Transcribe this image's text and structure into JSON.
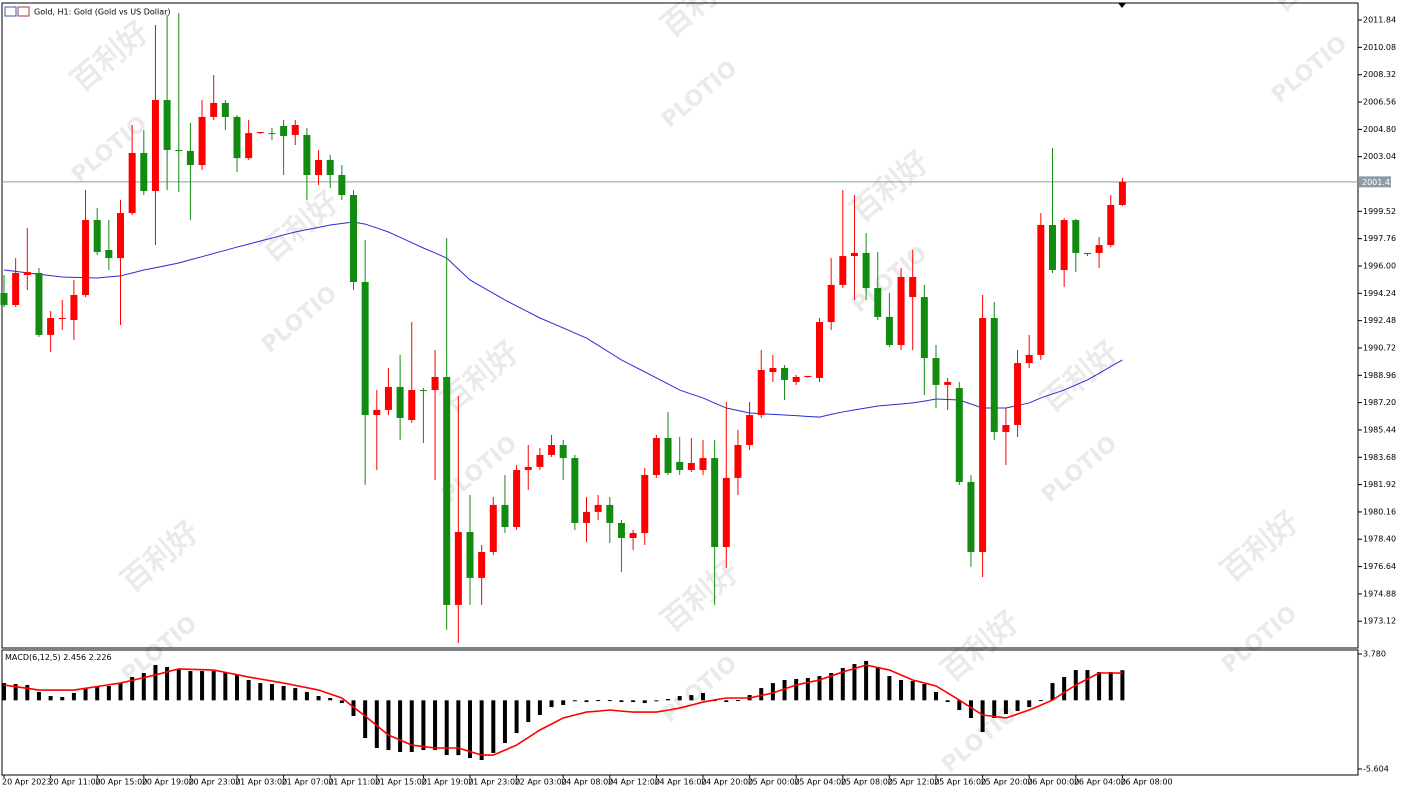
{
  "watermark": {
    "logo": "PLOTIO",
    "brand": "百利好"
  },
  "chart_data": [
    {
      "type": "candlestick",
      "title": "Gold, H1:  Gold (Gold vs US Dollar)",
      "categories": [
        "20 Apr 2023",
        null,
        null,
        null,
        "20 Apr 11:00",
        null,
        null,
        null,
        "20 Apr 15:00",
        null,
        null,
        null,
        "20 Apr 19:00",
        null,
        null,
        null,
        "20 Apr 23:00",
        null,
        null,
        null,
        "21 Apr 03:00",
        null,
        null,
        null,
        "21 Apr 07:00",
        null,
        null,
        null,
        "21 Apr 11:00",
        null,
        null,
        null,
        "21 Apr 15:00",
        null,
        null,
        null,
        "21 Apr 19:00",
        null,
        null,
        null,
        "21 Apr 23:00",
        null,
        null,
        null,
        "22 Apr 03:00",
        null,
        null,
        null,
        "24 Apr 08:00",
        null,
        null,
        null,
        "24 Apr 12:00",
        null,
        null,
        null,
        "24 Apr 16:00",
        null,
        null,
        null,
        "24 Apr 20:00",
        null,
        null,
        null,
        "25 Apr 00:00",
        null,
        null,
        null,
        "25 Apr 04:00",
        null,
        null,
        null,
        "25 Apr 08:00",
        null,
        null,
        null,
        "25 Apr 12:00",
        null,
        null,
        null,
        "25 Apr 16:00",
        null,
        null,
        null,
        "25 Apr 20:00",
        null,
        null,
        null,
        "26 Apr 00:00",
        null,
        null,
        null,
        "26 Apr 04:00",
        null,
        null,
        null,
        "26 Apr 08:00"
      ],
      "open": [
        1994.26,
        1993.49,
        1995.42,
        1995.55,
        1991.56,
        1992.59,
        1992.52,
        1994.13,
        1998.96,
        1997.03,
        1996.51,
        1999.41,
        2003.28,
        2000.83,
        2006.69,
        2003.47,
        2003.41,
        2002.5,
        2005.6,
        2006.5,
        2005.6,
        2002.95,
        2004.56,
        2004.56,
        2005.02,
        2004.44,
        2004.44,
        2001.86,
        2002.83,
        2001.86,
        2000.57,
        1994.97,
        1986.4,
        1986.73,
        1988.21,
        1986.08,
        1988.01,
        1988.01,
        1988.85,
        1974.17,
        1978.87,
        1975.91,
        1977.58,
        1980.61,
        1979.19,
        1982.86,
        1983.06,
        1983.83,
        1984.47,
        1983.63,
        1979.45,
        1980.16,
        1980.61,
        1979.45,
        1978.48,
        1978.8,
        1982.54,
        1984.92,
        1983.38,
        1982.86,
        1982.86,
        1983.63,
        1977.9,
        1982.35,
        1984.47,
        1986.4,
        1989.17,
        1989.43,
        1988.53,
        1988.85,
        1988.79,
        1992.39,
        1994.78,
        1996.64,
        1996.84,
        1994.58,
        1992.72,
        1990.91,
        1994.0,
        1994.0,
        1990.07,
        1988.34,
        1988.14,
        1982.09,
        1977.58,
        1992.65,
        1985.31,
        1985.76,
        1989.75,
        1990.27,
        1998.64,
        1995.74,
        1998.96,
        1996.84,
        1996.84,
        1997.35,
        1999.93
      ],
      "high": [
        1995.42,
        1996.51,
        1998.45,
        1995.87,
        1993.1,
        1993.81,
        1995.1,
        2000.89,
        1999.73,
        1998.96,
        2000.25,
        2005.08,
        2004.76,
        2011.52,
        2012.16,
        2012.29,
        2005.21,
        2006.69,
        2008.3,
        2006.69,
        2005.72,
        2005.4,
        2004.63,
        2004.89,
        2005.4,
        2005.4,
        2004.89,
        2003.47,
        2003.15,
        2002.5,
        2000.89,
        1997.67,
        1988.01,
        1989.43,
        1990.27,
        1992.39,
        1988.14,
        1990.59,
        1997.8,
        1987.63,
        1981.25,
        1978.03,
        1981.12,
        1982.54,
        1983.18,
        1984.47,
        1984.28,
        1985.12,
        1984.79,
        1983.83,
        1981.12,
        1981.25,
        1981.12,
        1979.64,
        1979.0,
        1982.99,
        1985.12,
        1986.6,
        1984.99,
        1984.92,
        1984.79,
        1984.79,
        1987.24,
        1985.44,
        1987.24,
        1990.59,
        1990.27,
        1989.62,
        1988.98,
        1988.92,
        1992.65,
        1996.51,
        2000.89,
        2000.57,
        1998.12,
        1996.9,
        1994.26,
        1995.87,
        1997.03,
        1994.78,
        1990.91,
        1988.79,
        1988.53,
        1982.54,
        1994.13,
        1993.68,
        1986.85,
        1990.59,
        1991.56,
        1999.41,
        2003.6,
        1999.09,
        1999.03,
        1996.84,
        1997.87,
        2000.57,
        2001.67
      ],
      "low": [
        1993.36,
        1993.36,
        1994.45,
        1991.43,
        1990.46,
        1991.88,
        1991.23,
        1994.0,
        1996.71,
        1995.74,
        1992.2,
        1999.28,
        2000.57,
        1997.35,
        2000.89,
        2000.77,
        1998.96,
        2002.18,
        2005.4,
        2004.76,
        2002.05,
        2002.83,
        2004.5,
        2004.11,
        2001.86,
        2003.79,
        2000.25,
        2001.22,
        2001.02,
        2000.25,
        1994.45,
        1981.9,
        1982.86,
        1986.4,
        1984.79,
        1985.89,
        1984.6,
        1982.22,
        1972.56,
        1971.72,
        1974.17,
        1974.17,
        1977.39,
        1978.8,
        1979.0,
        1981.57,
        1982.86,
        1983.7,
        1982.22,
        1979.0,
        1978.23,
        1979.64,
        1978.16,
        1976.29,
        1977.71,
        1978.03,
        1982.35,
        1982.54,
        1982.54,
        1982.73,
        1982.54,
        1974.17,
        1976.55,
        1981.25,
        1984.15,
        1986.21,
        1988.53,
        1987.37,
        1988.34,
        1988.79,
        1988.53,
        1991.88,
        1994.58,
        1993.81,
        1993.81,
        1992.52,
        1990.78,
        1990.59,
        1990.59,
        1987.69,
        1986.85,
        1986.73,
        1981.9,
        1976.62,
        1975.97,
        1984.79,
        1983.18,
        1984.99,
        1989.43,
        1989.95,
        1995.55,
        1994.65,
        1995.61,
        1996.64,
        1995.87,
        1997.22,
        1999.86
      ],
      "close": [
        1993.49,
        1995.55,
        1995.61,
        1991.56,
        1992.65,
        1992.65,
        1994.13,
        1998.96,
        1996.9,
        1996.51,
        1999.41,
        2003.28,
        2000.83,
        2006.69,
        2003.47,
        2003.41,
        2002.5,
        2005.6,
        2006.5,
        2005.6,
        2002.95,
        2004.56,
        2004.63,
        2004.5,
        2004.37,
        2005.08,
        2001.86,
        2002.83,
        2001.86,
        2000.57,
        1994.97,
        1986.4,
        1986.73,
        1988.21,
        1986.21,
        1988.01,
        1987.95,
        1988.85,
        1974.17,
        1978.87,
        1975.91,
        1977.58,
        1980.61,
        1979.19,
        1982.86,
        1983.06,
        1983.83,
        1984.47,
        1983.63,
        1979.45,
        1980.16,
        1980.61,
        1979.45,
        1978.48,
        1978.8,
        1982.54,
        1984.92,
        1982.67,
        1982.86,
        1983.31,
        1983.63,
        1977.9,
        1982.35,
        1984.47,
        1986.4,
        1989.3,
        1989.43,
        1988.66,
        1988.85,
        1988.92,
        1992.39,
        1994.78,
        1996.64,
        1996.84,
        1994.58,
        1992.72,
        1990.91,
        1995.29,
        1995.29,
        1990.07,
        1988.34,
        1988.53,
        1982.09,
        1977.58,
        1992.65,
        1985.31,
        1985.76,
        1989.75,
        1990.27,
        1998.64,
        1995.74,
        1998.96,
        1996.84,
        1996.77,
        1997.35,
        1999.93,
        2001.42
      ],
      "up_color": "#ff0000",
      "down_color": "#118c11",
      "moving_average": {
        "color": "#2b2bd6",
        "values": [
          1995.74,
          1995.65,
          1995.56,
          1995.47,
          1995.38,
          1995.29,
          1995.27,
          1995.25,
          1995.23,
          1995.3,
          1995.36,
          1995.55,
          1995.74,
          1995.89,
          1996.04,
          1996.19,
          1996.4,
          1996.6,
          1996.81,
          1997.01,
          1997.22,
          1997.41,
          1997.61,
          1997.8,
          1998.0,
          1998.19,
          1998.34,
          1998.49,
          1998.64,
          1998.74,
          1998.83,
          1998.7,
          1998.45,
          1998.19,
          1997.85,
          1997.5,
          1997.16,
          1996.84,
          1996.51,
          1995.8,
          1995.1,
          1994.67,
          1994.24,
          1993.81,
          1993.42,
          1993.04,
          1992.65,
          1992.33,
          1992.01,
          1991.68,
          1991.36,
          1990.89,
          1990.42,
          1989.95,
          1989.56,
          1989.18,
          1988.79,
          1988.4,
          1988.01,
          1987.75,
          1987.5,
          1987.17,
          1986.85,
          1986.69,
          1986.53,
          1986.49,
          1986.44,
          1986.4,
          1986.36,
          1986.31,
          1986.27,
          1986.44,
          1986.6,
          1986.73,
          1986.85,
          1986.98,
          1987.05,
          1987.11,
          1987.18,
          1987.3,
          1987.43,
          1987.4,
          1987.37,
          1987.11,
          1986.85,
          1986.85,
          1986.85,
          1987.01,
          1987.18,
          1987.5,
          1987.76,
          1988.01,
          1988.34,
          1988.66,
          1989.09,
          1989.52,
          1989.95
        ]
      },
      "current_price": 2001.42,
      "ylim": [
        1971.46,
        2012.81
      ],
      "yticks": [
        2011.84,
        2010.08,
        2008.32,
        2006.56,
        {
          "value": 2004.8,
          "label": "2004.80"
        },
        2003.04,
        1999.52,
        1997.76,
        {
          "value": 1996.0,
          "label": "1996.00"
        },
        1994.24,
        1992.48,
        1990.72,
        1988.96,
        {
          "value": 1987.2,
          "label": "1987.20"
        },
        1985.44,
        1983.68,
        1981.92,
        1980.16,
        {
          "value": 1978.4,
          "label": "1978.40"
        },
        1976.64,
        1974.88,
        1973.12
      ]
    },
    {
      "type": "macd",
      "label": "MACD(6,12,5)",
      "histogram": {
        "color": "#000000",
        "values": [
          1.41,
          1.33,
          1.25,
          0.68,
          0.35,
          0.27,
          0.6,
          1.0,
          1.09,
          1.17,
          1.41,
          1.9,
          2.23,
          2.88,
          2.72,
          2.56,
          2.39,
          2.39,
          2.39,
          2.31,
          2.07,
          1.66,
          1.41,
          1.33,
          1.17,
          1.0,
          0.68,
          0.35,
          0.19,
          -0.22,
          -1.28,
          -3.08,
          -3.89,
          -4.06,
          -4.22,
          -4.22,
          -4.06,
          -4.06,
          -4.47,
          -4.47,
          -4.71,
          -4.87,
          -4.3,
          -3.48,
          -2.67,
          -1.77,
          -1.2,
          -0.55,
          -0.38,
          -0.06,
          -0.14,
          0.02,
          0.02,
          -0.14,
          -0.14,
          -0.22,
          -0.06,
          0.11,
          0.35,
          0.43,
          0.6,
          0.02,
          -0.14,
          0.02,
          0.43,
          1.0,
          1.41,
          1.66,
          1.74,
          1.82,
          1.98,
          2.23,
          2.64,
          2.96,
          3.21,
          2.72,
          1.98,
          1.66,
          1.58,
          1.33,
          0.68,
          -0.14,
          -0.79,
          -1.44,
          -2.59,
          -1.44,
          -1.12,
          -0.87,
          -0.55,
          0.02,
          1.41,
          1.9,
          2.47,
          2.47,
          2.31,
          2.31,
          2.456
        ]
      },
      "signal": {
        "color": "#ff0000",
        "values": [
          1.25,
          1.11,
          0.98,
          0.84,
          0.84,
          0.84,
          0.84,
          0.98,
          1.13,
          1.27,
          1.41,
          1.63,
          1.85,
          2.07,
          2.32,
          2.56,
          2.53,
          2.5,
          2.47,
          2.28,
          2.09,
          1.9,
          1.74,
          1.57,
          1.41,
          1.22,
          1.03,
          0.84,
          0.52,
          0.19,
          -0.55,
          -1.28,
          -2.06,
          -2.83,
          -3.24,
          -3.65,
          -3.77,
          -3.89,
          -3.89,
          -3.89,
          -4.18,
          -4.47,
          -4.47,
          -4.06,
          -3.65,
          -3.04,
          -2.42,
          -1.93,
          -1.44,
          -1.2,
          -0.96,
          -0.88,
          -0.79,
          -0.88,
          -0.96,
          -0.96,
          -0.96,
          -0.8,
          -0.63,
          -0.39,
          -0.14,
          0.03,
          0.19,
          0.19,
          0.19,
          0.4,
          0.6,
          0.93,
          1.25,
          1.46,
          1.66,
          1.99,
          2.31,
          2.6,
          2.88,
          2.68,
          2.47,
          2.07,
          1.66,
          1.42,
          1.17,
          0.6,
          0.02,
          -0.59,
          -1.2,
          -1.32,
          -1.44,
          -1.12,
          -0.79,
          -0.39,
          0.02,
          0.64,
          1.25,
          1.74,
          2.23,
          2.23,
          2.226
        ]
      },
      "ylim": [
        -6.012,
        4.025
      ],
      "yticks": [
        {
          "value": 3.78,
          "label": "3.780"
        },
        -5.604
      ]
    }
  ]
}
